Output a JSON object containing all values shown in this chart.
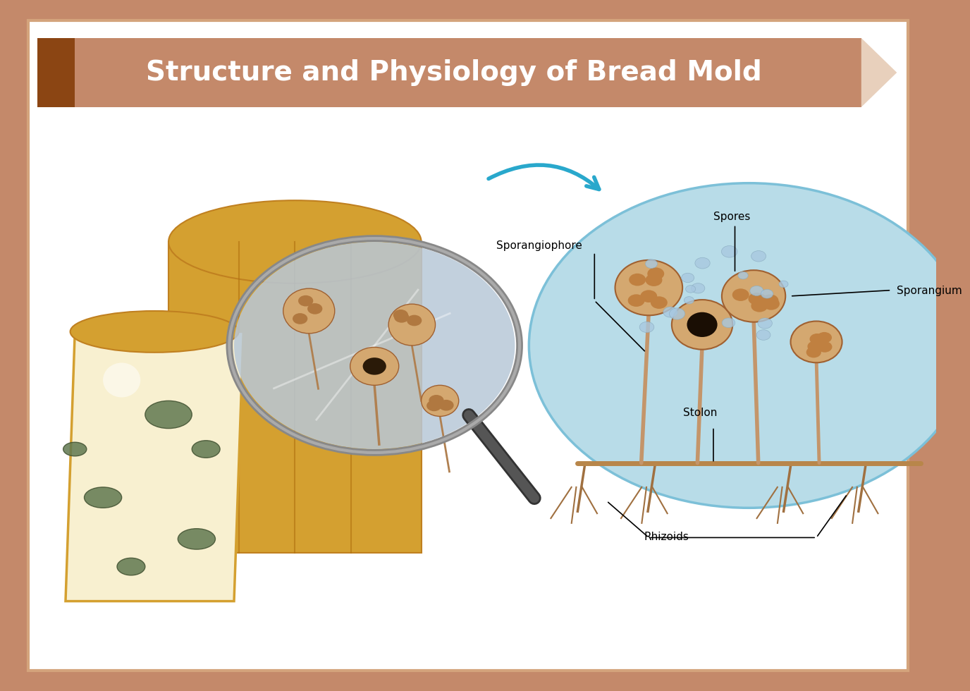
{
  "title": "Structure and Physiology of Bread Mold",
  "title_color": "#ffffff",
  "title_bg_color": "#c4896a",
  "title_dark_rect_color": "#8B4513",
  "outer_border_color": "#c4896a",
  "inner_border_color": "#d4a47c",
  "bg_color": "#ffffff",
  "diagram_circle_color": "#b8dce8",
  "labels": {
    "sporangiophore": "Sporangiophore",
    "spores": "Spores",
    "sporangium": "Sporangium",
    "stolon": "Stolon",
    "rhizoids": "Rhizoids"
  },
  "arrow_color": "#29a8cc",
  "sporangia_color": "#d4a870",
  "sporangia_spot_color": "#c08040",
  "stem_color": "#c4956a",
  "stolon_color": "#b8864a",
  "rhizoid_color": "#a07040"
}
